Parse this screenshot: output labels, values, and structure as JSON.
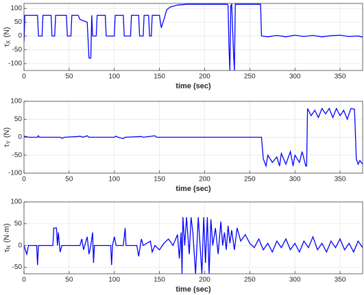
{
  "chart_data": [
    {
      "type": "line",
      "ylabel": {
        "symbol": "τ",
        "subscript": "X",
        "unit": "(N)"
      },
      "xlabel": "time (sec)",
      "color": "#0000ff",
      "grid": true,
      "xlim": [
        0,
        375
      ],
      "xticks": [
        0,
        50,
        100,
        150,
        200,
        250,
        300,
        350
      ],
      "ylim": [
        -125,
        118
      ],
      "yticks": [
        -100,
        -50,
        0,
        50,
        100
      ],
      "x": [
        0,
        1,
        15,
        16,
        20,
        21,
        30,
        31,
        34,
        35,
        47,
        48,
        52,
        53,
        60,
        62,
        70,
        72,
        74,
        75,
        76,
        80,
        81,
        90,
        91,
        100,
        101,
        110,
        111,
        118,
        119,
        127,
        128,
        132,
        133,
        138,
        139,
        141,
        142,
        150,
        152,
        155,
        158,
        162,
        170,
        180,
        225,
        226,
        227,
        228,
        229,
        230,
        232,
        233,
        234,
        262,
        263,
        270,
        280,
        290,
        300,
        310,
        320,
        330,
        340,
        350,
        360,
        370,
        375
      ],
      "values": [
        -20,
        75,
        75,
        0,
        0,
        75,
        75,
        0,
        0,
        75,
        75,
        0,
        0,
        75,
        75,
        60,
        50,
        -80,
        -80,
        75,
        0,
        0,
        75,
        75,
        0,
        0,
        75,
        75,
        0,
        0,
        75,
        75,
        0,
        0,
        75,
        75,
        0,
        0,
        75,
        75,
        30,
        60,
        95,
        105,
        112,
        115,
        115,
        110,
        -40,
        -125,
        110,
        115,
        -60,
        -125,
        115,
        115,
        0,
        -3,
        2,
        -3,
        3,
        -2,
        2,
        -3,
        1,
        3,
        -2,
        0,
        -4
      ]
    },
    {
      "type": "line",
      "ylabel": {
        "symbol": "τ",
        "subscript": "Y",
        "unit": "(N)"
      },
      "xlabel": "time (sec)",
      "color": "#0000ff",
      "grid": true,
      "xlim": [
        0,
        375
      ],
      "xticks": [
        0,
        50,
        100,
        150,
        200,
        250,
        300,
        350
      ],
      "ylim": [
        -100,
        100
      ],
      "yticks": [
        -100,
        -50,
        0,
        50,
        100
      ],
      "x": [
        0,
        5,
        15,
        16,
        17,
        40,
        42,
        45,
        60,
        62,
        65,
        70,
        72,
        100,
        102,
        104,
        110,
        112,
        130,
        132,
        145,
        147,
        263,
        265,
        268,
        270,
        275,
        280,
        283,
        285,
        290,
        295,
        298,
        300,
        305,
        308,
        312,
        313,
        314,
        318,
        322,
        326,
        330,
        334,
        338,
        342,
        346,
        350,
        354,
        358,
        362,
        366,
        368,
        370,
        372,
        375
      ],
      "values": [
        3,
        0,
        0,
        4,
        0,
        0,
        -3,
        0,
        2,
        3,
        0,
        4,
        0,
        0,
        3,
        0,
        -4,
        0,
        2,
        0,
        4,
        0,
        0,
        -60,
        -80,
        -50,
        -70,
        -55,
        -80,
        -45,
        -75,
        -40,
        -80,
        -50,
        -70,
        -40,
        -80,
        -80,
        80,
        60,
        75,
        55,
        80,
        65,
        80,
        55,
        80,
        60,
        75,
        50,
        80,
        78,
        -60,
        -75,
        -65,
        -75
      ]
    },
    {
      "type": "line",
      "ylabel": {
        "symbol": "τ",
        "subscript": "N",
        "unit": "(N·m)"
      },
      "xlabel": "time (sec)",
      "color": "#0000ff",
      "grid": true,
      "xlim": [
        0,
        375
      ],
      "xticks": [
        0,
        50,
        100,
        150,
        200,
        250,
        300,
        350
      ],
      "ylim": [
        -65,
        100
      ],
      "yticks": [
        -50,
        0,
        50,
        100
      ],
      "x": [
        0,
        3,
        5,
        14,
        15,
        16,
        32,
        33,
        36,
        37,
        38,
        40,
        42,
        62,
        64,
        66,
        70,
        72,
        74,
        76,
        77,
        78,
        96,
        97,
        98,
        100,
        102,
        110,
        112,
        113,
        125,
        127,
        130,
        132,
        140,
        142,
        145,
        150,
        155,
        160,
        165,
        170,
        172,
        174,
        175,
        176,
        178,
        180,
        183,
        185,
        187,
        190,
        193,
        195,
        197,
        199,
        201,
        203,
        205,
        207,
        209,
        212,
        215,
        218,
        220,
        222,
        224,
        226,
        228,
        230,
        233,
        236,
        240,
        245,
        250,
        255,
        260,
        265,
        270,
        275,
        280,
        285,
        290,
        295,
        300,
        305,
        310,
        315,
        320,
        325,
        330,
        335,
        340,
        345,
        350,
        355,
        360,
        365,
        370,
        375
      ],
      "values": [
        0,
        -20,
        0,
        0,
        -45,
        0,
        0,
        40,
        40,
        0,
        30,
        -15,
        0,
        0,
        15,
        -10,
        20,
        -20,
        0,
        30,
        -40,
        0,
        0,
        -45,
        0,
        20,
        0,
        0,
        40,
        0,
        0,
        -25,
        15,
        0,
        10,
        -15,
        0,
        -10,
        5,
        15,
        0,
        25,
        -30,
        30,
        -65,
        65,
        0,
        65,
        -20,
        65,
        30,
        -65,
        65,
        0,
        -65,
        65,
        -40,
        65,
        -65,
        60,
        0,
        40,
        -20,
        55,
        0,
        30,
        -10,
        45,
        5,
        35,
        -10,
        40,
        10,
        25,
        5,
        -5,
        15,
        -10,
        5,
        -15,
        10,
        -5,
        15,
        -10,
        5,
        -15,
        10,
        -5,
        20,
        -10,
        5,
        -15,
        10,
        -5,
        15,
        -10,
        5,
        -15,
        10,
        -5
      ]
    }
  ]
}
